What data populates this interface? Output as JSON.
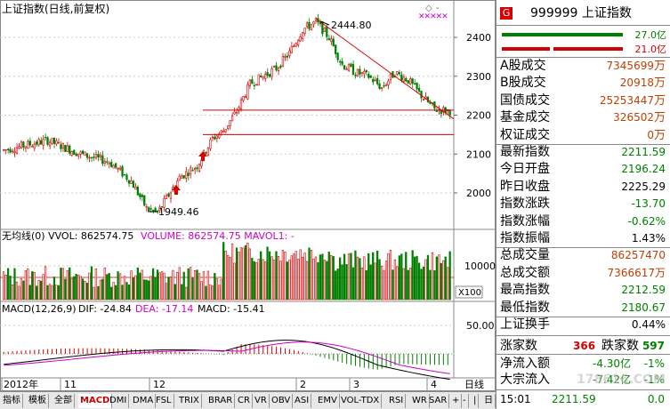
{
  "chart": {
    "title": "上证指数(日线,前复权)",
    "price_high_label": "2444.80",
    "price_low_label": "1949.46",
    "price_ticks": [
      "2400",
      "2300",
      "2200",
      "2100",
      "2000"
    ],
    "volume_header_left": "无均线(0)  VVOL: 862574.75",
    "volume_header_right": "VOLUME: 862574.75  MAVOL1: -",
    "volume_tick": "10000",
    "volume_scale": "X100",
    "macd_header": "MACD(12,26,9)",
    "macd_dif": "DIF: -24.84",
    "macd_dea": "DEA: -17.14",
    "macd_val": "MACD: -15.41",
    "macd_tick": "50.00",
    "time_labels": [
      "2012年",
      "11",
      "12",
      "2",
      "3",
      "4"
    ],
    "period_label": "日线",
    "colors": {
      "up": "#d40000",
      "down": "#008000",
      "dif": "#000000",
      "dea": "#cc00cc",
      "trend": "#d40000"
    }
  },
  "tabs": [
    "指标",
    "模板",
    "全部",
    "MACD",
    "DMI",
    "DMA",
    "FSL",
    "TRIX",
    "BRAR",
    "CR",
    "VR",
    "OBV",
    "ASI",
    "EMV",
    "VOL-TDX",
    "RSI",
    "WR",
    "SAR",
    "+",
    "-",
    "|",
    "日线"
  ],
  "active_tab": "MACD",
  "panel": {
    "badge": "G",
    "code_name": "999999 上证指数",
    "bar1_value": "27.0亿",
    "bar2_value": "21.0亿",
    "rows": [
      {
        "label": "A股成交",
        "value": "7345699",
        "unit": "万",
        "color": "#c04000"
      },
      {
        "label": "B股成交",
        "value": "20918",
        "unit": "万",
        "color": "#c04000"
      },
      {
        "label": "国债成交",
        "value": "25253447",
        "unit": "万",
        "color": "#c04000"
      },
      {
        "label": "基金成交",
        "value": "326502",
        "unit": "万",
        "color": "#c04000"
      },
      {
        "label": "权证成交",
        "value": "0",
        "unit": "万",
        "color": "#c04000"
      },
      {
        "label": "最新指数",
        "value": "2211.59",
        "unit": "",
        "color": "#008000"
      },
      {
        "label": "今日开盘",
        "value": "2196.24",
        "unit": "",
        "color": "#008000"
      },
      {
        "label": "昨日收盘",
        "value": "2225.29",
        "unit": "",
        "color": "#000000"
      },
      {
        "label": "指数涨跌",
        "value": "-13.70",
        "unit": "",
        "color": "#008000"
      },
      {
        "label": "指数涨幅",
        "value": "-0.62%",
        "unit": "",
        "color": "#008000"
      },
      {
        "label": "指数振幅",
        "value": "1.43%",
        "unit": "",
        "color": "#000000"
      },
      {
        "label": "总成交量",
        "value": "86257470",
        "unit": "",
        "color": "#c04000"
      },
      {
        "label": "总成交额",
        "value": "7366617万",
        "unit": "",
        "color": "#c04000"
      },
      {
        "label": "最高指数",
        "value": "2212.59",
        "unit": "",
        "color": "#008000"
      },
      {
        "label": "最低指数",
        "value": "2180.67",
        "unit": "",
        "color": "#008000"
      },
      {
        "label": "上证换手",
        "value": "0.44%",
        "unit": "",
        "color": "#000000"
      }
    ],
    "rise_label": "涨家数",
    "rise_value": "366",
    "fall_label": "跌家数",
    "fall_value": "597",
    "net_inflow_label": "净流入额",
    "net_inflow_value": "-4.30亿",
    "net_inflow_pct": "-1%",
    "block_label": "大宗流入",
    "block_value": "-7.42亿",
    "block_pct": "-1%",
    "time": "15:01",
    "last_price": "2211.59",
    "last_vol": "0.0",
    "watermark": "178616.COM"
  }
}
